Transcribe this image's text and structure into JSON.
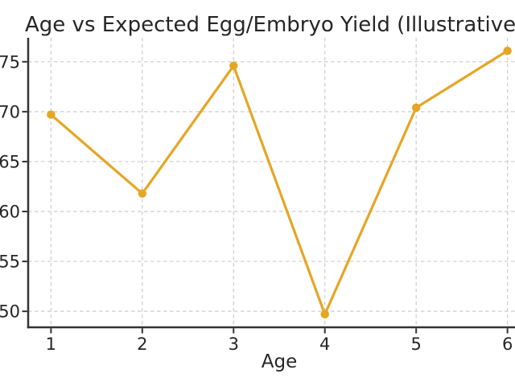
{
  "chart_data": {
    "type": "line",
    "title": "Age vs Expected Egg/Embryo Yield (Illustrative)",
    "xlabel": "Age",
    "ylabel": "",
    "x": [
      1,
      2,
      3,
      4,
      5,
      6
    ],
    "y": [
      69.7,
      61.8,
      74.6,
      49.7,
      70.4,
      76.1
    ],
    "xticks": [
      1,
      2,
      3,
      4,
      5,
      6
    ],
    "yticks": [
      50,
      55,
      60,
      65,
      70,
      75
    ],
    "xlim": [
      0.75,
      6.25
    ],
    "ylim": [
      48.4,
      77.4
    ],
    "grid": {
      "visible": true,
      "style": "dashed",
      "color": "#cdcdcd"
    },
    "marker": "circle",
    "legend": "none",
    "colors": {
      "line": "#E5A624",
      "marker": "#E5A624",
      "spine": "#333333",
      "text": "#262626",
      "background": "#ffffff"
    }
  }
}
